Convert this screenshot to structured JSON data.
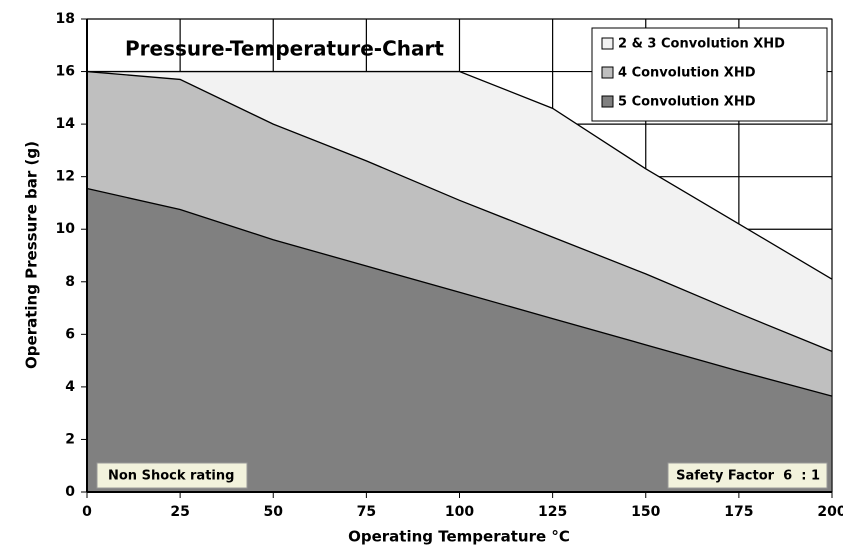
{
  "chart_data": {
    "type": "area",
    "title": "Pressure-Temperature-Chart",
    "x_label": "Operating Temperature °C",
    "y_label": "Operating Pressure bar (g)",
    "x": [
      0,
      25,
      50,
      75,
      100,
      125,
      150,
      175,
      200
    ],
    "series": [
      {
        "name": "2 & 3 Convolution XHD",
        "color": "#f2f2f2",
        "values": [
          16,
          16,
          16,
          16,
          16,
          14.6,
          12.3,
          10.2,
          8.1
        ]
      },
      {
        "name": "4 Convolution XHD",
        "color": "#bfbfbf",
        "values": [
          16,
          15.7,
          14.0,
          12.6,
          11.1,
          9.7,
          8.3,
          6.8,
          5.35
        ]
      },
      {
        "name": "5 Convolution XHD",
        "color": "#808080",
        "values": [
          11.55,
          10.75,
          9.6,
          8.6,
          7.6,
          6.6,
          5.6,
          4.6,
          3.65
        ]
      }
    ],
    "xlim": [
      0,
      200
    ],
    "xticks": [
      0,
      25,
      50,
      75,
      100,
      125,
      150,
      175,
      200
    ],
    "ylim": [
      0,
      18
    ],
    "yticks": [
      0,
      2,
      4,
      6,
      8,
      10,
      12,
      14,
      16,
      18
    ],
    "grid": true,
    "legend": "upper right",
    "annotations": [
      "Non Shock rating",
      "Safety Factor  6  : 1"
    ]
  }
}
